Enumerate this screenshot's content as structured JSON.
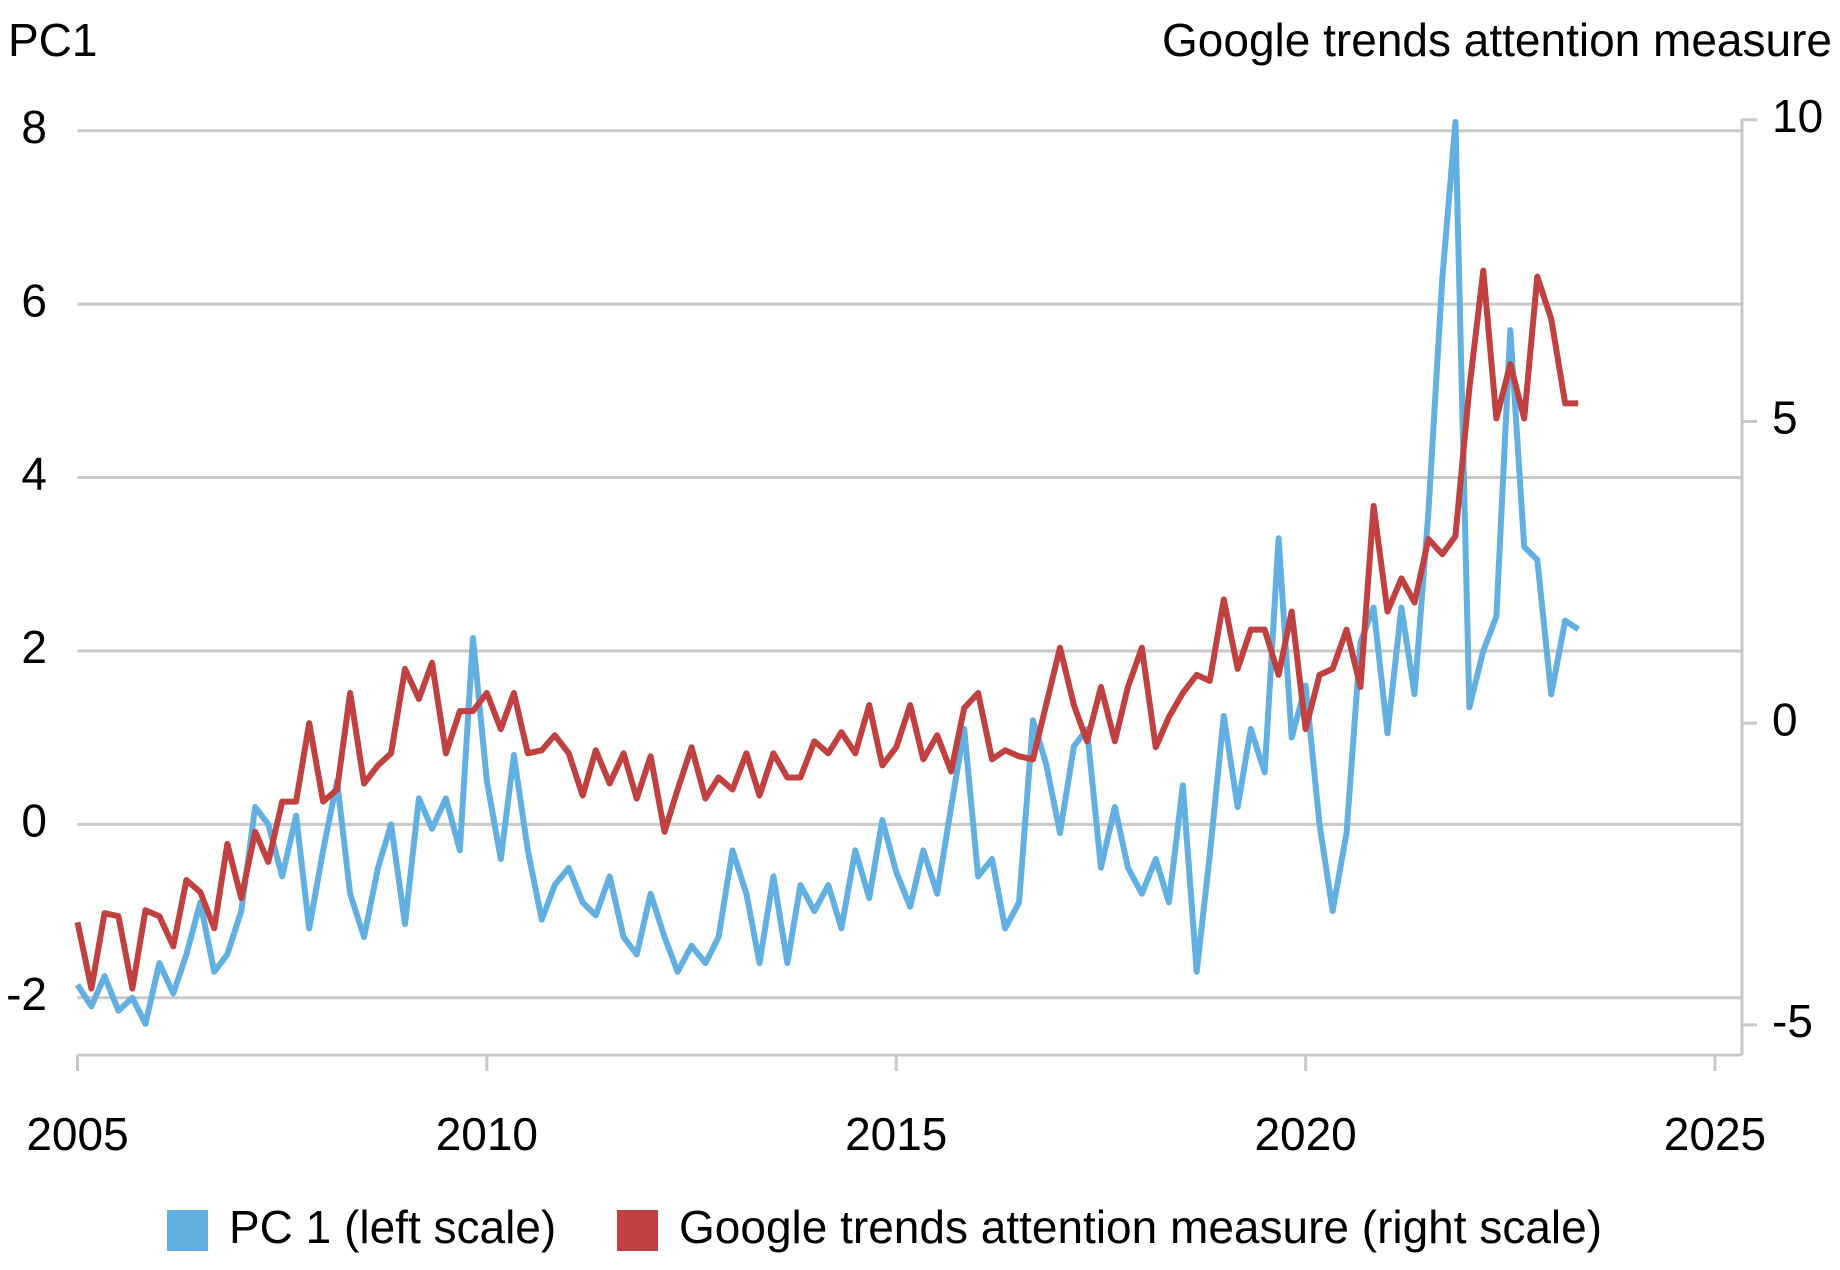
{
  "chart_data": {
    "type": "line",
    "ylabel": "PC1",
    "y2label": "Google trends attention measure",
    "x": [
      2005,
      2005.17,
      2005.33,
      2005.5,
      2005.67,
      2005.83,
      2006,
      2006.17,
      2006.33,
      2006.5,
      2006.67,
      2006.83,
      2007,
      2007.17,
      2007.33,
      2007.5,
      2007.67,
      2007.83,
      2008,
      2008.17,
      2008.33,
      2008.5,
      2008.67,
      2008.83,
      2009,
      2009.17,
      2009.33,
      2009.5,
      2009.67,
      2009.83,
      2010,
      2010.17,
      2010.33,
      2010.5,
      2010.67,
      2010.83,
      2011,
      2011.17,
      2011.33,
      2011.5,
      2011.67,
      2011.83,
      2012,
      2012.17,
      2012.33,
      2012.5,
      2012.67,
      2012.83,
      2013,
      2013.17,
      2013.33,
      2013.5,
      2013.67,
      2013.83,
      2014,
      2014.17,
      2014.33,
      2014.5,
      2014.67,
      2014.83,
      2015,
      2015.17,
      2015.33,
      2015.5,
      2015.67,
      2015.83,
      2016,
      2016.17,
      2016.33,
      2016.5,
      2016.67,
      2016.83,
      2017,
      2017.17,
      2017.33,
      2017.5,
      2017.67,
      2017.83,
      2018,
      2018.17,
      2018.33,
      2018.5,
      2018.67,
      2018.83,
      2019,
      2019.17,
      2019.33,
      2019.5,
      2019.67,
      2019.83,
      2020,
      2020.17,
      2020.33,
      2020.5,
      2020.67,
      2020.83,
      2021,
      2021.17,
      2021.33,
      2021.5,
      2021.67,
      2021.83,
      2022,
      2022.17,
      2022.33,
      2022.5,
      2022.67,
      2022.83,
      2023,
      2023.17,
      2023.33
    ],
    "series": [
      {
        "name": "PC 1 (left scale)",
        "color": "#62b0e1",
        "values": [
          -1.85,
          -2.1,
          -1.75,
          -2.15,
          -2.0,
          -2.3,
          -1.6,
          -1.95,
          -1.5,
          -0.9,
          -1.7,
          -1.5,
          -1.0,
          0.2,
          0.0,
          -0.6,
          0.1,
          -1.2,
          -0.3,
          0.5,
          -0.8,
          -1.3,
          -0.5,
          0.0,
          -1.15,
          0.3,
          -0.05,
          0.3,
          -0.3,
          2.15,
          0.5,
          -0.4,
          0.8,
          -0.3,
          -1.1,
          -0.7,
          -0.5,
          -0.9,
          -1.05,
          -0.6,
          -1.3,
          -1.5,
          -0.8,
          -1.3,
          -1.7,
          -1.4,
          -1.6,
          -1.3,
          -0.3,
          -0.8,
          -1.6,
          -0.6,
          -1.6,
          -0.7,
          -1.0,
          -0.7,
          -1.2,
          -0.3,
          -0.85,
          0.05,
          -0.55,
          -0.95,
          -0.3,
          -0.8,
          0.2,
          1.1,
          -0.6,
          -0.4,
          -1.2,
          -0.9,
          1.2,
          0.7,
          -0.1,
          0.9,
          1.1,
          -0.5,
          0.2,
          -0.5,
          -0.8,
          -0.4,
          -0.9,
          0.45,
          -1.7,
          -0.35,
          1.25,
          0.2,
          1.1,
          0.6,
          3.3,
          1.0,
          1.6,
          0.0,
          -1.0,
          -0.1,
          2.1,
          2.5,
          1.05,
          2.5,
          1.5,
          3.6,
          6.3,
          8.1,
          1.35,
          2.0,
          2.4,
          5.7,
          3.2,
          3.05,
          1.5,
          2.35,
          2.25
        ]
      },
      {
        "name": "Google trends attention measure (right scale)",
        "color": "#c0413f",
        "axis": "y2",
        "values": [
          -3.3,
          -4.4,
          -3.15,
          -3.2,
          -4.4,
          -3.1,
          -3.2,
          -3.7,
          -2.6,
          -2.8,
          -3.4,
          -2.0,
          -2.9,
          -1.8,
          -2.3,
          -1.3,
          -1.3,
          0.0,
          -1.3,
          -1.1,
          0.5,
          -1.0,
          -0.7,
          -0.5,
          0.9,
          0.4,
          1.0,
          -0.5,
          0.2,
          0.2,
          0.5,
          -0.1,
          0.5,
          -0.5,
          -0.45,
          -0.2,
          -0.5,
          -1.2,
          -0.45,
          -1.0,
          -0.5,
          -1.25,
          -0.55,
          -1.8,
          -1.1,
          -0.4,
          -1.25,
          -0.9,
          -1.1,
          -0.5,
          -1.2,
          -0.5,
          -0.9,
          -0.9,
          -0.3,
          -0.5,
          -0.15,
          -0.5,
          0.3,
          -0.7,
          -0.4,
          0.3,
          -0.6,
          -0.2,
          -0.8,
          0.25,
          0.5,
          -0.6,
          -0.45,
          -0.55,
          -0.6,
          0.3,
          1.25,
          0.3,
          -0.3,
          0.6,
          -0.3,
          0.6,
          1.25,
          -0.4,
          0.1,
          0.5,
          0.8,
          0.7,
          2.05,
          0.9,
          1.55,
          1.55,
          0.8,
          1.85,
          -0.1,
          0.8,
          0.9,
          1.55,
          0.6,
          3.6,
          1.85,
          2.4,
          2.0,
          3.05,
          2.8,
          3.1,
          5.55,
          7.5,
          5.05,
          5.95,
          5.05,
          7.4,
          6.7,
          5.3,
          5.3
        ]
      }
    ],
    "xlim": [
      2005,
      2025.33
    ],
    "xticks": [
      2005,
      2010,
      2015,
      2020,
      2025
    ],
    "ylim": [
      -2.66,
      8.3
    ],
    "yticks": [
      -2,
      0,
      2,
      4,
      6,
      8
    ],
    "y2lim": [
      -5.5,
      10.25
    ],
    "y2ticks": [
      -5,
      0,
      5,
      10
    ],
    "grid": true,
    "legend": "bottom"
  }
}
